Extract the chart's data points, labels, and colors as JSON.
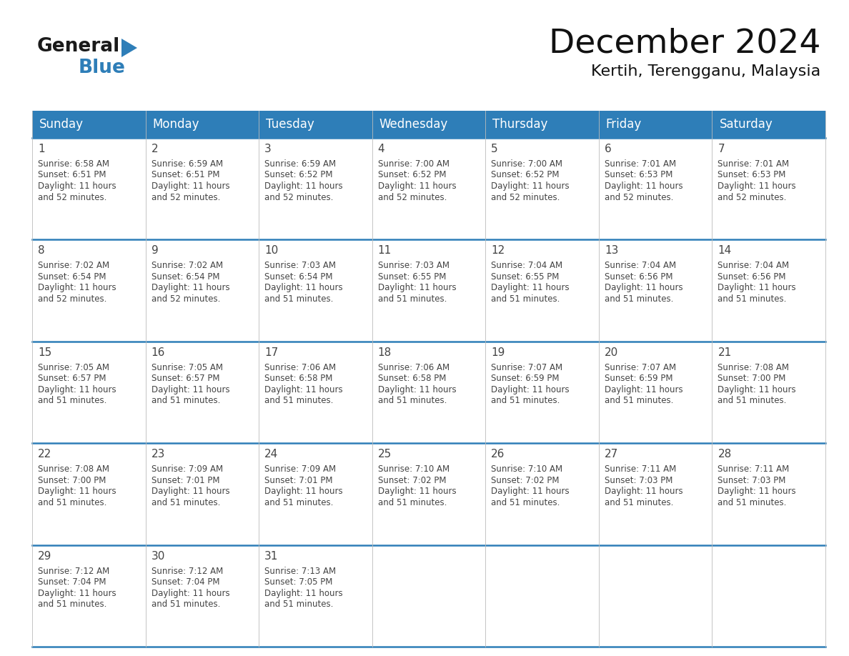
{
  "title": "December 2024",
  "subtitle": "Kertih, Terengganu, Malaysia",
  "days_of_week": [
    "Sunday",
    "Monday",
    "Tuesday",
    "Wednesday",
    "Thursday",
    "Friday",
    "Saturday"
  ],
  "header_bg": "#2E7EB8",
  "header_text": "#FFFFFF",
  "border_color": "#2E7EB8",
  "day_number_color": "#444444",
  "text_color": "#444444",
  "cell_bg": "#FFFFFF",
  "calendar_data": [
    {
      "day": 1,
      "col": 0,
      "row": 0,
      "sunrise": "6:58 AM",
      "sunset": "6:51 PM",
      "dl_hours": 11,
      "dl_mins": 52
    },
    {
      "day": 2,
      "col": 1,
      "row": 0,
      "sunrise": "6:59 AM",
      "sunset": "6:51 PM",
      "dl_hours": 11,
      "dl_mins": 52
    },
    {
      "day": 3,
      "col": 2,
      "row": 0,
      "sunrise": "6:59 AM",
      "sunset": "6:52 PM",
      "dl_hours": 11,
      "dl_mins": 52
    },
    {
      "day": 4,
      "col": 3,
      "row": 0,
      "sunrise": "7:00 AM",
      "sunset": "6:52 PM",
      "dl_hours": 11,
      "dl_mins": 52
    },
    {
      "day": 5,
      "col": 4,
      "row": 0,
      "sunrise": "7:00 AM",
      "sunset": "6:52 PM",
      "dl_hours": 11,
      "dl_mins": 52
    },
    {
      "day": 6,
      "col": 5,
      "row": 0,
      "sunrise": "7:01 AM",
      "sunset": "6:53 PM",
      "dl_hours": 11,
      "dl_mins": 52
    },
    {
      "day": 7,
      "col": 6,
      "row": 0,
      "sunrise": "7:01 AM",
      "sunset": "6:53 PM",
      "dl_hours": 11,
      "dl_mins": 52
    },
    {
      "day": 8,
      "col": 0,
      "row": 1,
      "sunrise": "7:02 AM",
      "sunset": "6:54 PM",
      "dl_hours": 11,
      "dl_mins": 52
    },
    {
      "day": 9,
      "col": 1,
      "row": 1,
      "sunrise": "7:02 AM",
      "sunset": "6:54 PM",
      "dl_hours": 11,
      "dl_mins": 52
    },
    {
      "day": 10,
      "col": 2,
      "row": 1,
      "sunrise": "7:03 AM",
      "sunset": "6:54 PM",
      "dl_hours": 11,
      "dl_mins": 51
    },
    {
      "day": 11,
      "col": 3,
      "row": 1,
      "sunrise": "7:03 AM",
      "sunset": "6:55 PM",
      "dl_hours": 11,
      "dl_mins": 51
    },
    {
      "day": 12,
      "col": 4,
      "row": 1,
      "sunrise": "7:04 AM",
      "sunset": "6:55 PM",
      "dl_hours": 11,
      "dl_mins": 51
    },
    {
      "day": 13,
      "col": 5,
      "row": 1,
      "sunrise": "7:04 AM",
      "sunset": "6:56 PM",
      "dl_hours": 11,
      "dl_mins": 51
    },
    {
      "day": 14,
      "col": 6,
      "row": 1,
      "sunrise": "7:04 AM",
      "sunset": "6:56 PM",
      "dl_hours": 11,
      "dl_mins": 51
    },
    {
      "day": 15,
      "col": 0,
      "row": 2,
      "sunrise": "7:05 AM",
      "sunset": "6:57 PM",
      "dl_hours": 11,
      "dl_mins": 51
    },
    {
      "day": 16,
      "col": 1,
      "row": 2,
      "sunrise": "7:05 AM",
      "sunset": "6:57 PM",
      "dl_hours": 11,
      "dl_mins": 51
    },
    {
      "day": 17,
      "col": 2,
      "row": 2,
      "sunrise": "7:06 AM",
      "sunset": "6:58 PM",
      "dl_hours": 11,
      "dl_mins": 51
    },
    {
      "day": 18,
      "col": 3,
      "row": 2,
      "sunrise": "7:06 AM",
      "sunset": "6:58 PM",
      "dl_hours": 11,
      "dl_mins": 51
    },
    {
      "day": 19,
      "col": 4,
      "row": 2,
      "sunrise": "7:07 AM",
      "sunset": "6:59 PM",
      "dl_hours": 11,
      "dl_mins": 51
    },
    {
      "day": 20,
      "col": 5,
      "row": 2,
      "sunrise": "7:07 AM",
      "sunset": "6:59 PM",
      "dl_hours": 11,
      "dl_mins": 51
    },
    {
      "day": 21,
      "col": 6,
      "row": 2,
      "sunrise": "7:08 AM",
      "sunset": "7:00 PM",
      "dl_hours": 11,
      "dl_mins": 51
    },
    {
      "day": 22,
      "col": 0,
      "row": 3,
      "sunrise": "7:08 AM",
      "sunset": "7:00 PM",
      "dl_hours": 11,
      "dl_mins": 51
    },
    {
      "day": 23,
      "col": 1,
      "row": 3,
      "sunrise": "7:09 AM",
      "sunset": "7:01 PM",
      "dl_hours": 11,
      "dl_mins": 51
    },
    {
      "day": 24,
      "col": 2,
      "row": 3,
      "sunrise": "7:09 AM",
      "sunset": "7:01 PM",
      "dl_hours": 11,
      "dl_mins": 51
    },
    {
      "day": 25,
      "col": 3,
      "row": 3,
      "sunrise": "7:10 AM",
      "sunset": "7:02 PM",
      "dl_hours": 11,
      "dl_mins": 51
    },
    {
      "day": 26,
      "col": 4,
      "row": 3,
      "sunrise": "7:10 AM",
      "sunset": "7:02 PM",
      "dl_hours": 11,
      "dl_mins": 51
    },
    {
      "day": 27,
      "col": 5,
      "row": 3,
      "sunrise": "7:11 AM",
      "sunset": "7:03 PM",
      "dl_hours": 11,
      "dl_mins": 51
    },
    {
      "day": 28,
      "col": 6,
      "row": 3,
      "sunrise": "7:11 AM",
      "sunset": "7:03 PM",
      "dl_hours": 11,
      "dl_mins": 51
    },
    {
      "day": 29,
      "col": 0,
      "row": 4,
      "sunrise": "7:12 AM",
      "sunset": "7:04 PM",
      "dl_hours": 11,
      "dl_mins": 51
    },
    {
      "day": 30,
      "col": 1,
      "row": 4,
      "sunrise": "7:12 AM",
      "sunset": "7:04 PM",
      "dl_hours": 11,
      "dl_mins": 51
    },
    {
      "day": 31,
      "col": 2,
      "row": 4,
      "sunrise": "7:13 AM",
      "sunset": "7:05 PM",
      "dl_hours": 11,
      "dl_mins": 51
    }
  ],
  "num_rows": 5,
  "num_cols": 7,
  "logo_general_color": "#1a1a1a",
  "logo_blue_color": "#2E7EB8",
  "logo_triangle_color": "#2E7EB8"
}
